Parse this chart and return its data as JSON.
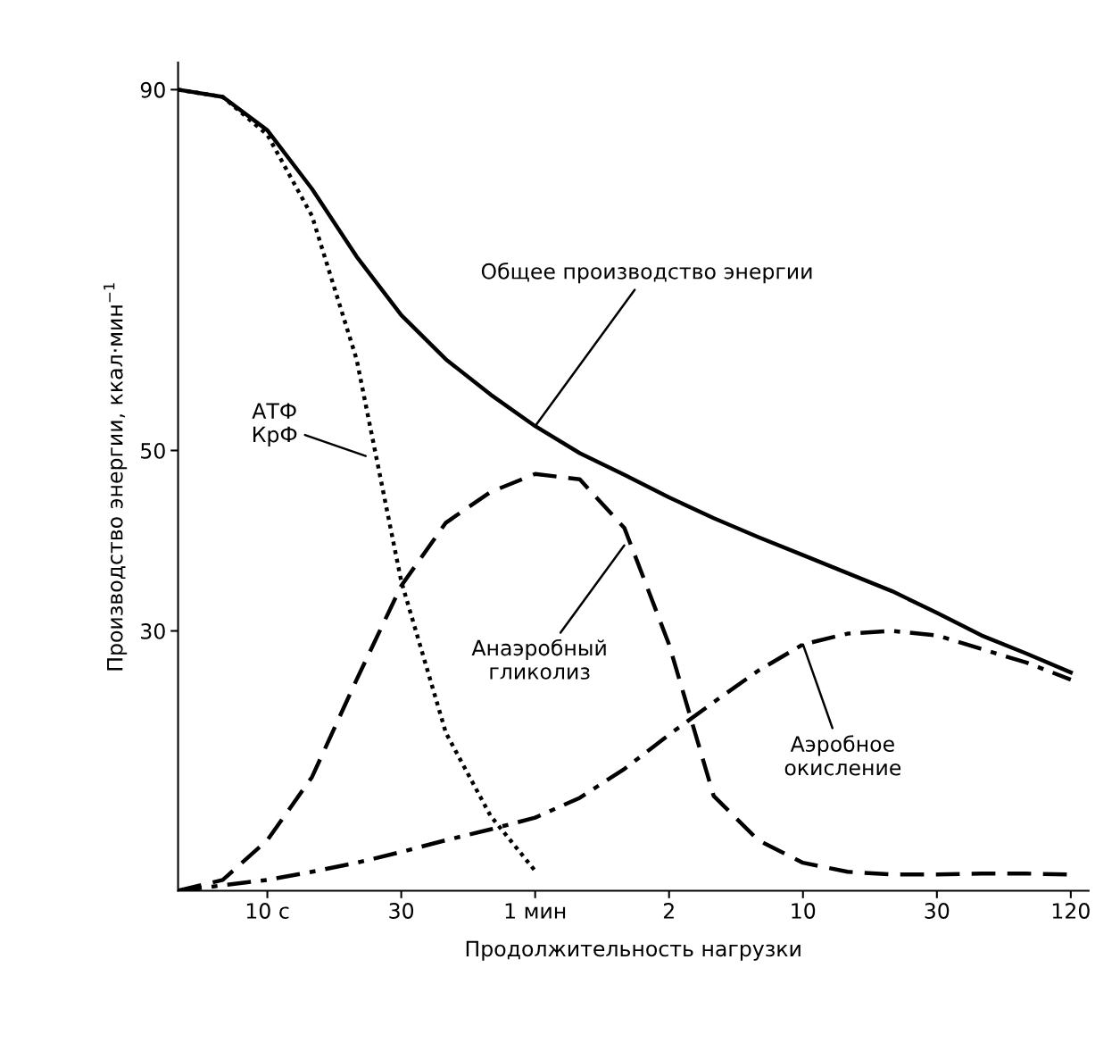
{
  "chart_data": {
    "type": "line",
    "xlabel": "Продолжительность нагрузки",
    "ylabel": "Производство энергии, ккал·мин$^{−1}$",
    "categories": [
      null,
      null,
      "10 с",
      null,
      null,
      "30",
      null,
      null,
      "1 мин",
      null,
      null,
      "2",
      null,
      null,
      "10",
      null,
      null,
      "30",
      null,
      null,
      "120"
    ],
    "ylim": [
      1.2,
      93
    ],
    "yticks": [
      30,
      50,
      90
    ],
    "grid": false,
    "marker": "none",
    "series": [
      {
        "color": "#000000",
        "line_style": "solid",
        "values": [
          90.0,
          89.2,
          85.5,
          79.0,
          71.5,
          65.0,
          60.1,
          56.2,
          52.7,
          49.7,
          47.3,
          44.8,
          42.5,
          40.4,
          38.4,
          36.4,
          34.4,
          32.0,
          29.5,
          27.5,
          25.4
        ]
      },
      {
        "color": "#000000",
        "line_style": "dotted",
        "values": [
          90.0,
          89.2,
          85.0,
          76.0,
          60.1,
          35.5,
          18.7,
          9.5,
          3.4,
          null,
          null,
          null,
          null,
          null,
          null,
          null,
          null,
          null,
          null,
          null,
          null
        ]
      },
      {
        "color": "#000000",
        "line_style": "dashed",
        "values": [
          1.2,
          2.4,
          6.8,
          13.8,
          24.6,
          35.0,
          42.0,
          45.4,
          47.4,
          46.8,
          41.4,
          28.5,
          11.7,
          6.8,
          4.3,
          3.3,
          3.0,
          3.0,
          3.1,
          3.1,
          3.0
        ]
      },
      {
        "color": "#000000",
        "line_style": "dashdot",
        "values": [
          1.2,
          1.8,
          2.4,
          3.3,
          4.3,
          5.5,
          6.8,
          8.0,
          9.3,
          11.5,
          14.7,
          18.5,
          22.1,
          25.6,
          28.5,
          29.7,
          30.0,
          29.5,
          28.0,
          26.5,
          24.6
        ]
      }
    ],
    "annotations": [
      {
        "text": "Общее производство энергии",
        "x": "1 мин",
        "y": 52.7
      },
      "АТФ\nКрФ",
      "Анаэробный\nгликолиз",
      {
        "text": "Аэробное\nокисление",
        "x": "10",
        "y": 28.5
      }
    ]
  }
}
